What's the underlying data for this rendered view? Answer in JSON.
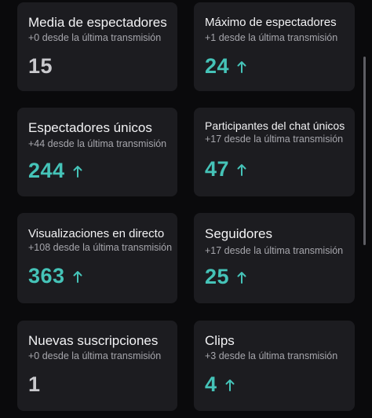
{
  "colors": {
    "background": "#0a0a0c",
    "card": "#1c1c20",
    "title": "#f2f2f4",
    "subtitle": "#a6a6ac",
    "value_neutral": "#c9c9cd",
    "value_up": "#45c3b8"
  },
  "cards": [
    {
      "title": "Media de espectadores",
      "subtitle": "+0 desde la última transmisión",
      "value": "15",
      "trend": "none"
    },
    {
      "title": "Máximo de espectadores",
      "subtitle": "+1 desde la última transmisión",
      "value": "24",
      "trend": "up"
    },
    {
      "title": "Espectadores únicos",
      "subtitle": "+44 desde la última transmisión",
      "value": "244",
      "trend": "up"
    },
    {
      "title": "Participantes del chat únicos",
      "subtitle": "+17 desde la última transmisión",
      "value": "47",
      "trend": "up"
    },
    {
      "title": "Visualizaciones en directo",
      "subtitle": "+108 desde la última transmisión",
      "value": "363",
      "trend": "up"
    },
    {
      "title": "Seguidores",
      "subtitle": "+17 desde la última transmisión",
      "value": "25",
      "trend": "up"
    },
    {
      "title": "Nuevas suscripciones",
      "subtitle": "+0 desde la última transmisión",
      "value": "1",
      "trend": "none"
    },
    {
      "title": "Clips",
      "subtitle": "+3 desde la última transmisión",
      "value": "4",
      "trend": "up"
    }
  ],
  "icons": {
    "trend_up": "arrow-up-icon"
  }
}
